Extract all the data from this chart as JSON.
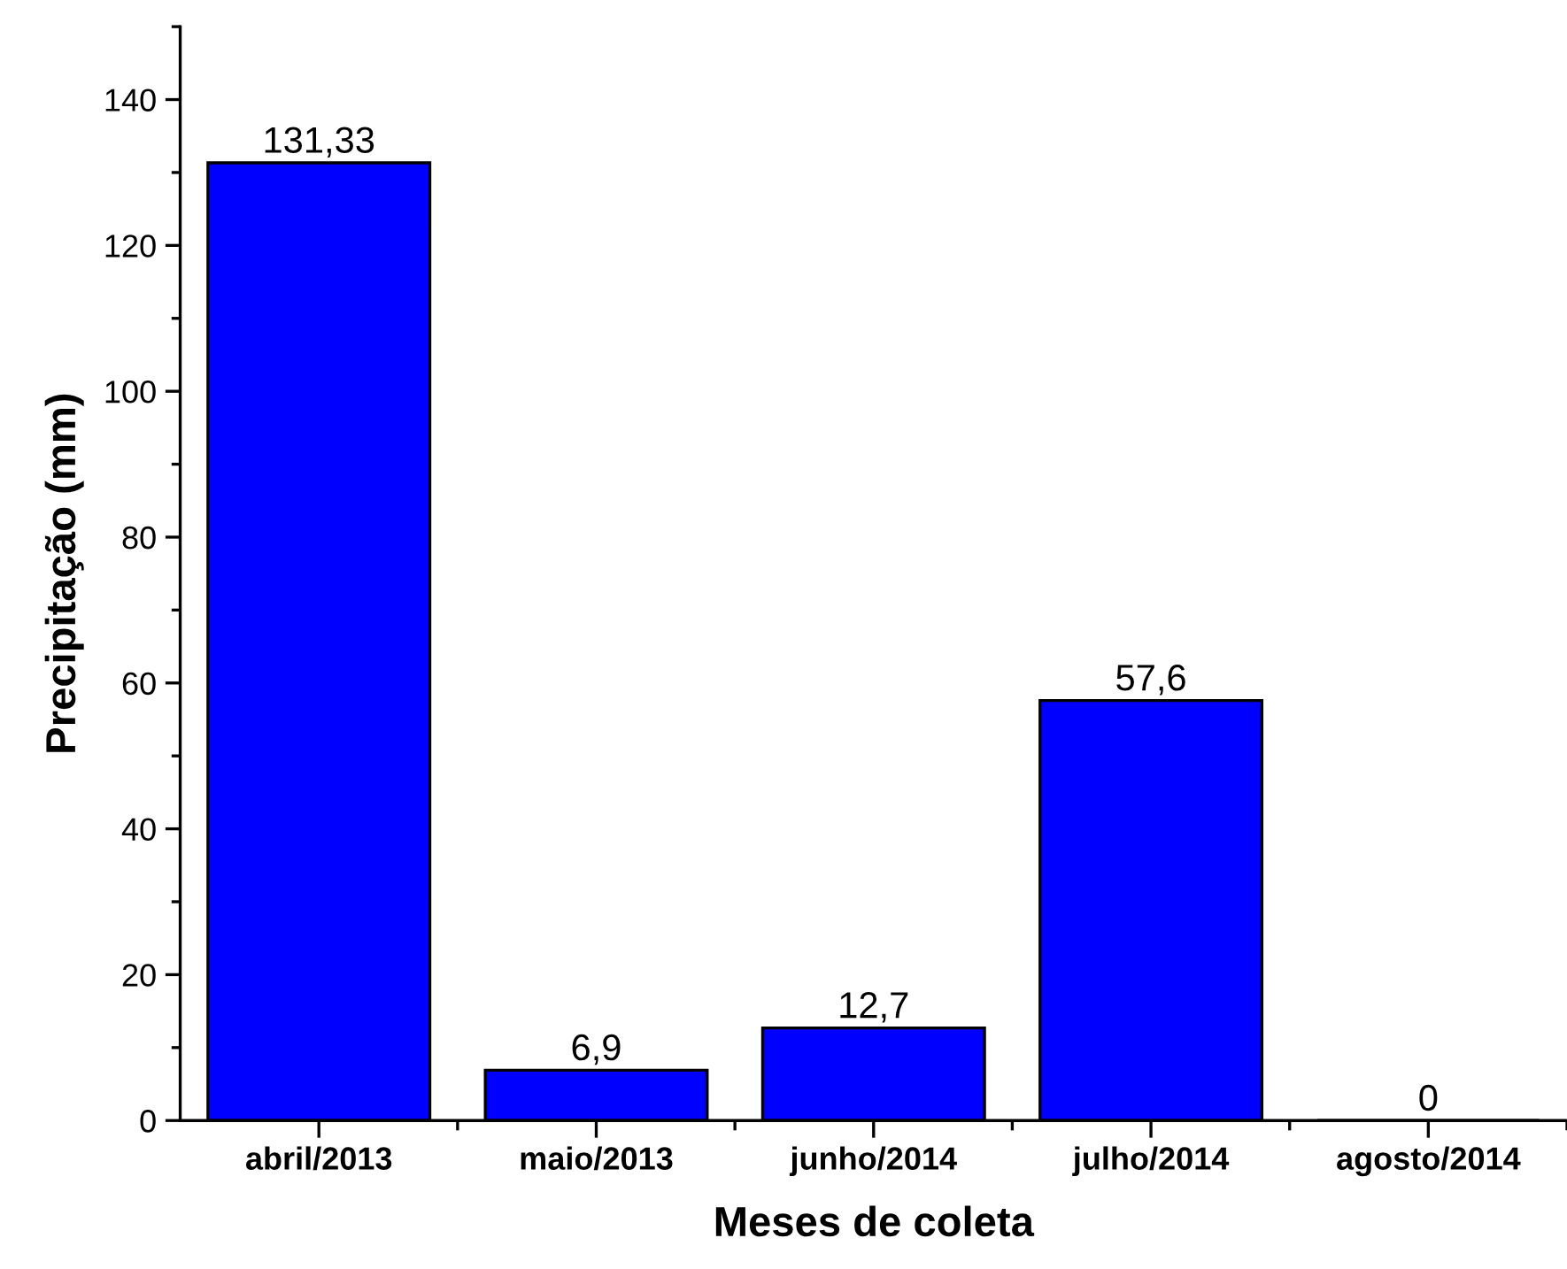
{
  "chart_data": {
    "type": "bar",
    "xlabel": "Meses de coleta",
    "ylabel": "Precipitação (mm)",
    "categories": [
      "abril/2013",
      "maio/2013",
      "junho/2014",
      "julho/2014",
      "agosto/2014"
    ],
    "values": [
      131.33,
      6.9,
      12.7,
      57.6,
      0
    ],
    "value_labels": [
      "131,33",
      "6,9",
      "12,7",
      "57,6",
      "0"
    ],
    "color": "#0000ff",
    "ylim": [
      0,
      150
    ],
    "yticks": [
      0,
      {
        "value": 10,
        "label": null
      },
      20,
      {
        "value": 30,
        "label": null
      },
      40,
      {
        "value": 50,
        "label": null
      },
      60,
      {
        "value": 70,
        "label": null
      },
      80,
      {
        "value": 90,
        "label": null
      },
      100,
      {
        "value": 110,
        "label": null
      },
      120,
      {
        "value": 130,
        "label": null
      },
      140,
      {
        "value": 150,
        "label": null
      }
    ],
    "grid": false,
    "legend": false
  }
}
